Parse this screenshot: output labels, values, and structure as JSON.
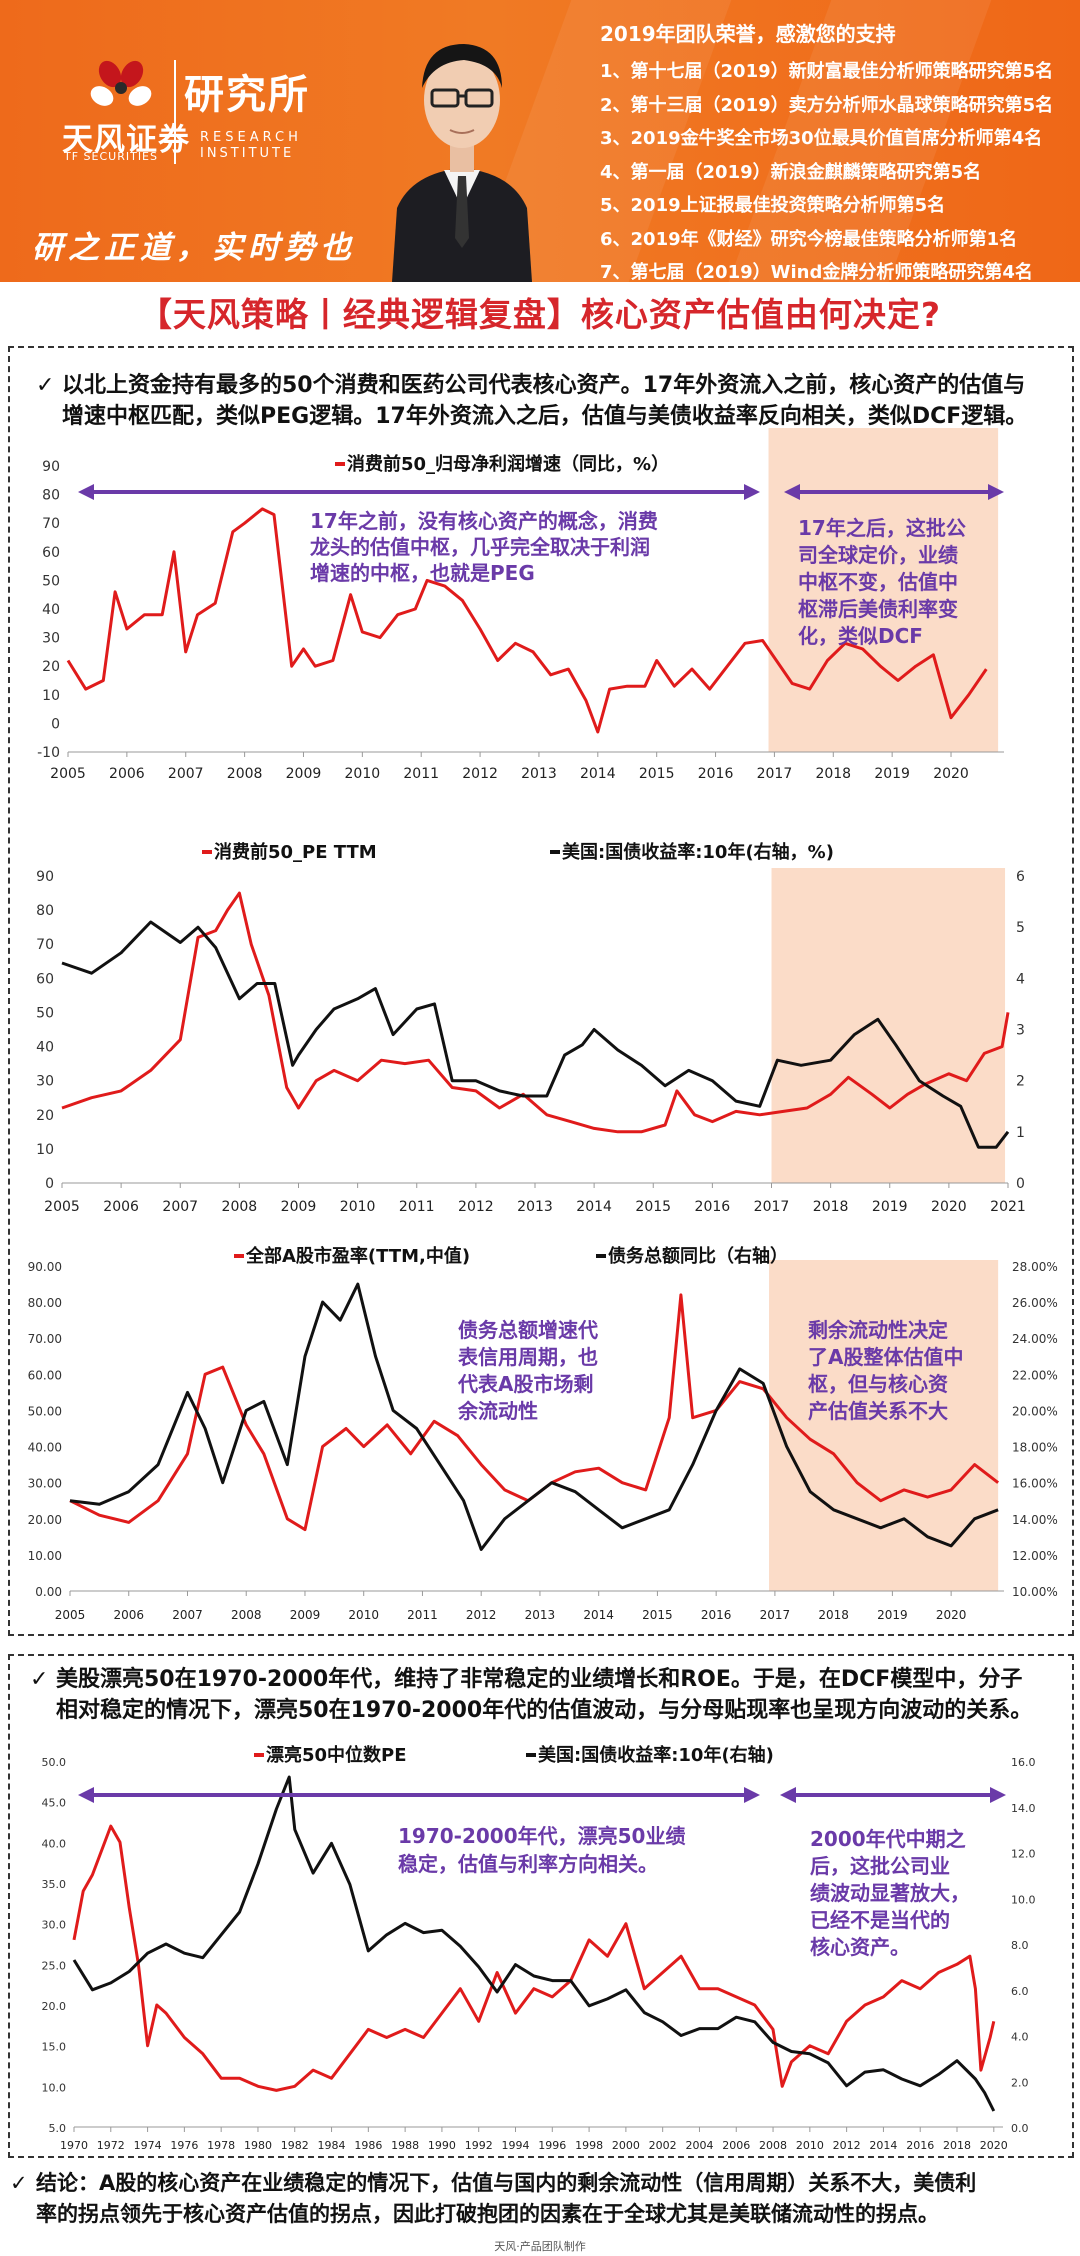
{
  "header": {
    "brand": "天风证券",
    "brand_en": "TF SECURITIES",
    "institute": "研究所",
    "institute_en_1": "RESEARCH",
    "institute_en_2": "INSTITUTE",
    "slogan": "研之正道，实时势也",
    "honors_title": "2019年团队荣誉，感激您的支持",
    "honors": [
      "1、第十七届（2019）新财富最佳分析师策略研究第5名",
      "2、第十三届（2019）卖方分析师水晶球策略研究第5名",
      "3、2019金牛奖全市场30位最具价值首席分析师第4名",
      "4、第一届（2019）新浪金麒麟策略研究第5名",
      "5、2019上证报最佳投资策略分析师第5名",
      "6、2019年《财经》研究今榜最佳策略分析师第1名",
      "7、第七届（2019）Wind金牌分析师策略研究第4名"
    ]
  },
  "title": "【天风策略丨经典逻辑复盘】核心资产估值由何决定?",
  "panel1": {
    "bullet_line1": "以北上资金持有最多的50个消费和医药公司代表核心资产。17年外资流入之前，核心资产的估值与",
    "bullet_line2": "增速中枢匹配，类似PEG逻辑。17年外资流入之后，估值与美债收益率反向相关，类似DCF逻辑。"
  },
  "panel2": {
    "bullet_line1": "美股漂亮50在1970-2000年代，维持了非常稳定的业绩增长和ROE。于是，在DCF模型中，分子",
    "bullet_line2": "相对稳定的情况下，漂亮50在1970-2000年代的估值波动，与分母贴现率也呈现方向波动的关系。"
  },
  "conclusion": {
    "line1": "结论：A股的核心资产在业绩稳定的情况下，估值与国内的剩余流动性（信用周期）关系不大，美债利",
    "line2": "率的拐点领先于核心资产估值的拐点，因此打破抱团的因素在于全球尤其是美联储流动性的拐点。"
  },
  "footnote": "天风·产品团队制作",
  "colors": {
    "red": "#e01b1b",
    "black": "#111111",
    "purple": "#6a3aa8",
    "shade": "#fbdcc8",
    "orange": "#f07a24"
  },
  "chart_data": [
    {
      "type": "line",
      "id": "c1",
      "title": "",
      "legend": [
        "消费前50_归母净利润增速（同比，%）"
      ],
      "x_ticks": [
        "2005",
        "2006",
        "2007",
        "2008",
        "2009",
        "2010",
        "2011",
        "2012",
        "2013",
        "2014",
        "2015",
        "2016",
        "2017",
        "2018",
        "2019",
        "2020"
      ],
      "xlim": [
        2005,
        2020.9
      ],
      "ylim": [
        -10,
        90
      ],
      "y_ticks": [
        "-10",
        "0",
        "10",
        "20",
        "30",
        "40",
        "50",
        "60",
        "70",
        "80",
        "90"
      ],
      "shade_range": [
        2016.9,
        2020.8
      ],
      "series": [
        {
          "name": "消费前50_归母净利润增速（同比，%）",
          "color": "red",
          "x": [
            2005,
            2005.3,
            2005.6,
            2005.8,
            2006,
            2006.3,
            2006.6,
            2006.8,
            2007,
            2007.2,
            2007.5,
            2007.8,
            2008,
            2008.3,
            2008.5,
            2008.8,
            2009,
            2009.2,
            2009.5,
            2009.8,
            2010,
            2010.3,
            2010.6,
            2010.9,
            2011.1,
            2011.4,
            2011.7,
            2012,
            2012.3,
            2012.6,
            2012.9,
            2013.2,
            2013.5,
            2013.8,
            2014,
            2014.2,
            2014.5,
            2014.8,
            2015,
            2015.3,
            2015.6,
            2015.9,
            2016.2,
            2016.5,
            2016.8,
            2017,
            2017.3,
            2017.6,
            2017.9,
            2018.2,
            2018.5,
            2018.8,
            2019.1,
            2019.4,
            2019.7,
            2020,
            2020.3,
            2020.6
          ],
          "values": [
            22,
            12,
            15,
            46,
            33,
            38,
            38,
            60,
            25,
            38,
            42,
            67,
            70,
            75,
            73,
            20,
            26,
            20,
            22,
            45,
            32,
            30,
            38,
            40,
            50,
            48,
            43,
            33,
            22,
            28,
            25,
            17,
            19,
            8,
            -3,
            12,
            13,
            13,
            22,
            13,
            19,
            12,
            20,
            28,
            29,
            23,
            14,
            12,
            22,
            28,
            26,
            20,
            15,
            20,
            24,
            2,
            10,
            19
          ]
        }
      ],
      "annotations": [
        {
          "text": "17年之前，没有核心资产的概念，消费\n龙头的估值中枢，几乎完全取决于利润\n增速的中枢，也就是PEG"
        },
        {
          "text": "17年之后，这批公\n司全球定价，业绩\n中枢不变，估值中\n枢滞后美债利率变\n化，类似DCF"
        }
      ]
    },
    {
      "type": "line",
      "id": "c2",
      "legend": [
        "消费前50_PE TTM",
        "美国:国债收益率:10年(右轴，%)"
      ],
      "x_ticks": [
        "2005",
        "2006",
        "2007",
        "2008",
        "2009",
        "2010",
        "2011",
        "2012",
        "2013",
        "2014",
        "2015",
        "2016",
        "2017",
        "2018",
        "2019",
        "2020",
        "2021"
      ],
      "xlim": [
        2005,
        2021
      ],
      "ylim": [
        0,
        90
      ],
      "y_ticks": [
        "0",
        "10",
        "20",
        "30",
        "40",
        "50",
        "60",
        "70",
        "80",
        "90"
      ],
      "y2lim": [
        0,
        6
      ],
      "y2_ticks": [
        "0",
        "1",
        "2",
        "3",
        "4",
        "5",
        "6"
      ],
      "shade_range": [
        2017,
        2020.95
      ],
      "series": [
        {
          "name": "消费前50_PE TTM",
          "color": "red",
          "axis": "left",
          "x": [
            2005,
            2005.5,
            2006,
            2006.5,
            2007,
            2007.3,
            2007.6,
            2007.8,
            2008,
            2008.2,
            2008.5,
            2008.8,
            2009,
            2009.3,
            2009.6,
            2010,
            2010.4,
            2010.8,
            2011.2,
            2011.6,
            2012,
            2012.4,
            2012.8,
            2013.2,
            2013.6,
            2014,
            2014.4,
            2014.8,
            2015.2,
            2015.4,
            2015.7,
            2016,
            2016.4,
            2016.8,
            2017.2,
            2017.6,
            2018,
            2018.3,
            2018.7,
            2019,
            2019.3,
            2019.6,
            2020,
            2020.3,
            2020.6,
            2020.9,
            2021
          ],
          "values": [
            22,
            25,
            27,
            33,
            42,
            72,
            74,
            80,
            85,
            70,
            55,
            28,
            22,
            30,
            33,
            30,
            36,
            35,
            36,
            28,
            27,
            22,
            26,
            20,
            18,
            16,
            15,
            15,
            17,
            27,
            20,
            18,
            21,
            20,
            21,
            22,
            26,
            31,
            26,
            22,
            26,
            29,
            32,
            30,
            38,
            40,
            50
          ]
        },
        {
          "name": "美国:国债收益率:10年(右轴，%)",
          "color": "black",
          "axis": "right",
          "x": [
            2005,
            2005.5,
            2006,
            2006.5,
            2007,
            2007.3,
            2007.6,
            2008,
            2008.3,
            2008.6,
            2008.9,
            2009,
            2009.3,
            2009.6,
            2010,
            2010.3,
            2010.6,
            2011,
            2011.3,
            2011.6,
            2012,
            2012.4,
            2012.8,
            2013.2,
            2013.5,
            2013.8,
            2014,
            2014.4,
            2014.8,
            2015.2,
            2015.6,
            2016,
            2016.4,
            2016.8,
            2017.1,
            2017.5,
            2018,
            2018.4,
            2018.8,
            2019.1,
            2019.5,
            2019.9,
            2020.2,
            2020.5,
            2020.8,
            2021
          ],
          "values": [
            4.3,
            4.1,
            4.5,
            5.1,
            4.7,
            5.0,
            4.6,
            3.6,
            3.9,
            3.9,
            2.3,
            2.5,
            3.0,
            3.4,
            3.6,
            3.8,
            2.9,
            3.4,
            3.5,
            2.0,
            2.0,
            1.8,
            1.7,
            1.7,
            2.5,
            2.7,
            3.0,
            2.6,
            2.3,
            1.9,
            2.2,
            2.0,
            1.6,
            1.5,
            2.4,
            2.3,
            2.4,
            2.9,
            3.2,
            2.7,
            2.0,
            1.7,
            1.5,
            0.7,
            0.7,
            1.0
          ]
        }
      ]
    },
    {
      "type": "line",
      "id": "c3",
      "legend": [
        "全部A股市盈率(TTM,中值)",
        "债务总额同比（右轴）"
      ],
      "x_ticks": [
        "2005",
        "2006",
        "2007",
        "2008",
        "2009",
        "2010",
        "2011",
        "2012",
        "2013",
        "2014",
        "2015",
        "2016",
        "2017",
        "2018",
        "2019",
        "2020"
      ],
      "xlim": [
        2005,
        2020.9
      ],
      "ylim": [
        0,
        90
      ],
      "y_ticks": [
        "0.00",
        "10.00",
        "20.00",
        "30.00",
        "40.00",
        "50.00",
        "60.00",
        "70.00",
        "80.00",
        "90.00"
      ],
      "y2lim": [
        10,
        28
      ],
      "y2_ticks": [
        "10.00%",
        "12.00%",
        "14.00%",
        "16.00%",
        "18.00%",
        "20.00%",
        "22.00%",
        "24.00%",
        "26.00%",
        "28.00%"
      ],
      "shade_range": [
        2016.9,
        2020.8
      ],
      "series": [
        {
          "name": "全部A股市盈率(TTM,中值)",
          "color": "red",
          "axis": "left",
          "x": [
            2005,
            2005.5,
            2006,
            2006.5,
            2007,
            2007.3,
            2007.6,
            2008,
            2008.3,
            2008.7,
            2009,
            2009.3,
            2009.7,
            2010,
            2010.4,
            2010.8,
            2011.2,
            2011.6,
            2012,
            2012.4,
            2012.8,
            2013.2,
            2013.6,
            2014,
            2014.4,
            2014.8,
            2015.2,
            2015.4,
            2015.6,
            2016,
            2016.4,
            2016.8,
            2017.2,
            2017.6,
            2018,
            2018.4,
            2018.8,
            2019.2,
            2019.6,
            2020,
            2020.4,
            2020.8
          ],
          "values": [
            25,
            21,
            19,
            25,
            38,
            60,
            62,
            46,
            38,
            20,
            17,
            40,
            45,
            40,
            46,
            38,
            47,
            43,
            35,
            28,
            25,
            30,
            33,
            34,
            30,
            28,
            48,
            82,
            48,
            50,
            58,
            56,
            48,
            42,
            38,
            30,
            25,
            28,
            26,
            28,
            35,
            30
          ]
        },
        {
          "name": "债务总额同比（右轴）",
          "color": "black",
          "axis": "right",
          "x": [
            2005,
            2005.5,
            2006,
            2006.5,
            2007,
            2007.3,
            2007.6,
            2008,
            2008.3,
            2008.7,
            2009,
            2009.3,
            2009.6,
            2009.9,
            2010.2,
            2010.5,
            2010.9,
            2011.3,
            2011.7,
            2012,
            2012.4,
            2012.8,
            2013.2,
            2013.6,
            2014,
            2014.4,
            2014.8,
            2015.2,
            2015.6,
            2016,
            2016.4,
            2016.8,
            2017.2,
            2017.6,
            2018,
            2018.4,
            2018.8,
            2019.2,
            2019.6,
            2020,
            2020.4,
            2020.8
          ],
          "values": [
            15,
            14.8,
            15.5,
            17,
            21,
            19,
            16,
            20,
            20.5,
            17,
            23,
            26,
            25,
            27,
            23,
            20,
            19,
            17,
            15,
            12.3,
            14,
            15,
            16,
            15.5,
            14.5,
            13.5,
            14,
            14.5,
            17,
            20,
            22.3,
            21.5,
            18,
            15.5,
            14.5,
            14,
            13.5,
            14,
            13,
            12.5,
            14,
            14.5
          ]
        }
      ],
      "annotations": [
        {
          "text": "债务总额增速代\n表信用周期，也\n代表A股市场剩\n余流动性"
        },
        {
          "text": "剩余流动性决定\n了A股整体估值中\n枢，但与核心资\n产估值关系不大"
        }
      ]
    },
    {
      "type": "line",
      "id": "c4",
      "legend": [
        "漂亮50中位数PE",
        "美国:国债收益率:10年(右轴)"
      ],
      "x_ticks": [
        "1970",
        "1972",
        "1974",
        "1976",
        "1978",
        "1980",
        "1982",
        "1984",
        "1986",
        "1988",
        "1990",
        "1992",
        "1994",
        "1996",
        "1998",
        "2000",
        "2002",
        "2004",
        "2006",
        "2008",
        "2010",
        "2012",
        "2014",
        "2016",
        "2018",
        "2020"
      ],
      "xlim": [
        1970,
        2020.5
      ],
      "ylim": [
        5,
        50
      ],
      "y_ticks": [
        "5.0",
        "10.0",
        "15.0",
        "20.0",
        "25.0",
        "30.0",
        "35.0",
        "40.0",
        "45.0",
        "50.0"
      ],
      "y2lim": [
        0,
        16
      ],
      "y2_ticks": [
        "0.0",
        "2.0",
        "4.0",
        "6.0",
        "8.0",
        "10.0",
        "12.0",
        "14.0",
        "16.0"
      ],
      "shade_range": null,
      "series": [
        {
          "name": "漂亮50中位数PE",
          "color": "red",
          "axis": "left",
          "x": [
            1970,
            1970.5,
            1971,
            1972,
            1972.5,
            1973,
            1973.5,
            1974,
            1974.5,
            1975,
            1976,
            1977,
            1978,
            1979,
            1980,
            1981,
            1982,
            1983,
            1984,
            1985,
            1986,
            1987,
            1988,
            1989,
            1990,
            1991,
            1992,
            1993,
            1994,
            1995,
            1996,
            1997,
            1998,
            1999,
            2000,
            2001,
            2002,
            2003,
            2004,
            2005,
            2006,
            2007,
            2008,
            2008.5,
            2009,
            2010,
            2011,
            2012,
            2013,
            2014,
            2015,
            2016,
            2017,
            2018,
            2018.7,
            2019,
            2019.3,
            2019.8,
            2020
          ],
          "values": [
            28,
            34,
            36,
            42,
            40,
            32,
            25,
            15,
            20,
            19,
            16,
            14,
            11,
            11,
            10,
            9.5,
            10,
            12,
            11,
            14,
            17,
            16,
            17,
            16,
            19,
            22,
            18,
            24,
            19,
            22,
            21,
            23,
            28,
            26,
            30,
            22,
            24,
            26,
            22,
            22,
            21,
            20,
            17,
            10,
            13,
            15,
            14,
            18,
            20,
            21,
            23,
            22,
            24,
            25,
            26,
            22,
            12,
            16,
            18
          ]
        },
        {
          "name": "美国:国债收益率:10年(右轴)",
          "color": "black",
          "axis": "right",
          "x": [
            1970,
            1971,
            1972,
            1973,
            1974,
            1975,
            1976,
            1977,
            1978,
            1979,
            1980,
            1981,
            1981.7,
            1982,
            1983,
            1984,
            1985,
            1986,
            1987,
            1988,
            1989,
            1990,
            1991,
            1992,
            1993,
            1994,
            1995,
            1996,
            1997,
            1998,
            1999,
            2000,
            2001,
            2002,
            2003,
            2004,
            2005,
            2006,
            2007,
            2008,
            2009,
            2010,
            2011,
            2012,
            2013,
            2014,
            2015,
            2016,
            2017,
            2018,
            2019,
            2019.5,
            2020
          ],
          "values": [
            7.3,
            6.0,
            6.3,
            6.8,
            7.6,
            8.0,
            7.6,
            7.4,
            8.4,
            9.4,
            11.5,
            13.9,
            15.3,
            13.0,
            11.1,
            12.4,
            10.6,
            7.7,
            8.4,
            8.9,
            8.5,
            8.6,
            7.9,
            7.0,
            5.9,
            7.1,
            6.6,
            6.4,
            6.4,
            5.3,
            5.6,
            6.0,
            5.0,
            4.6,
            4.0,
            4.3,
            4.3,
            4.8,
            4.6,
            3.7,
            3.3,
            3.2,
            2.8,
            1.8,
            2.4,
            2.5,
            2.1,
            1.8,
            2.3,
            2.9,
            2.1,
            1.5,
            0.7
          ]
        }
      ],
      "annotations": [
        {
          "text": "1970-2000年代，漂亮50业绩\n稳定，估值与利率方向相关。"
        },
        {
          "text": "2000年代中期之\n后，这批公司业\n绩波动显著放大，\n已经不是当代的\n核心资产。"
        }
      ]
    }
  ]
}
